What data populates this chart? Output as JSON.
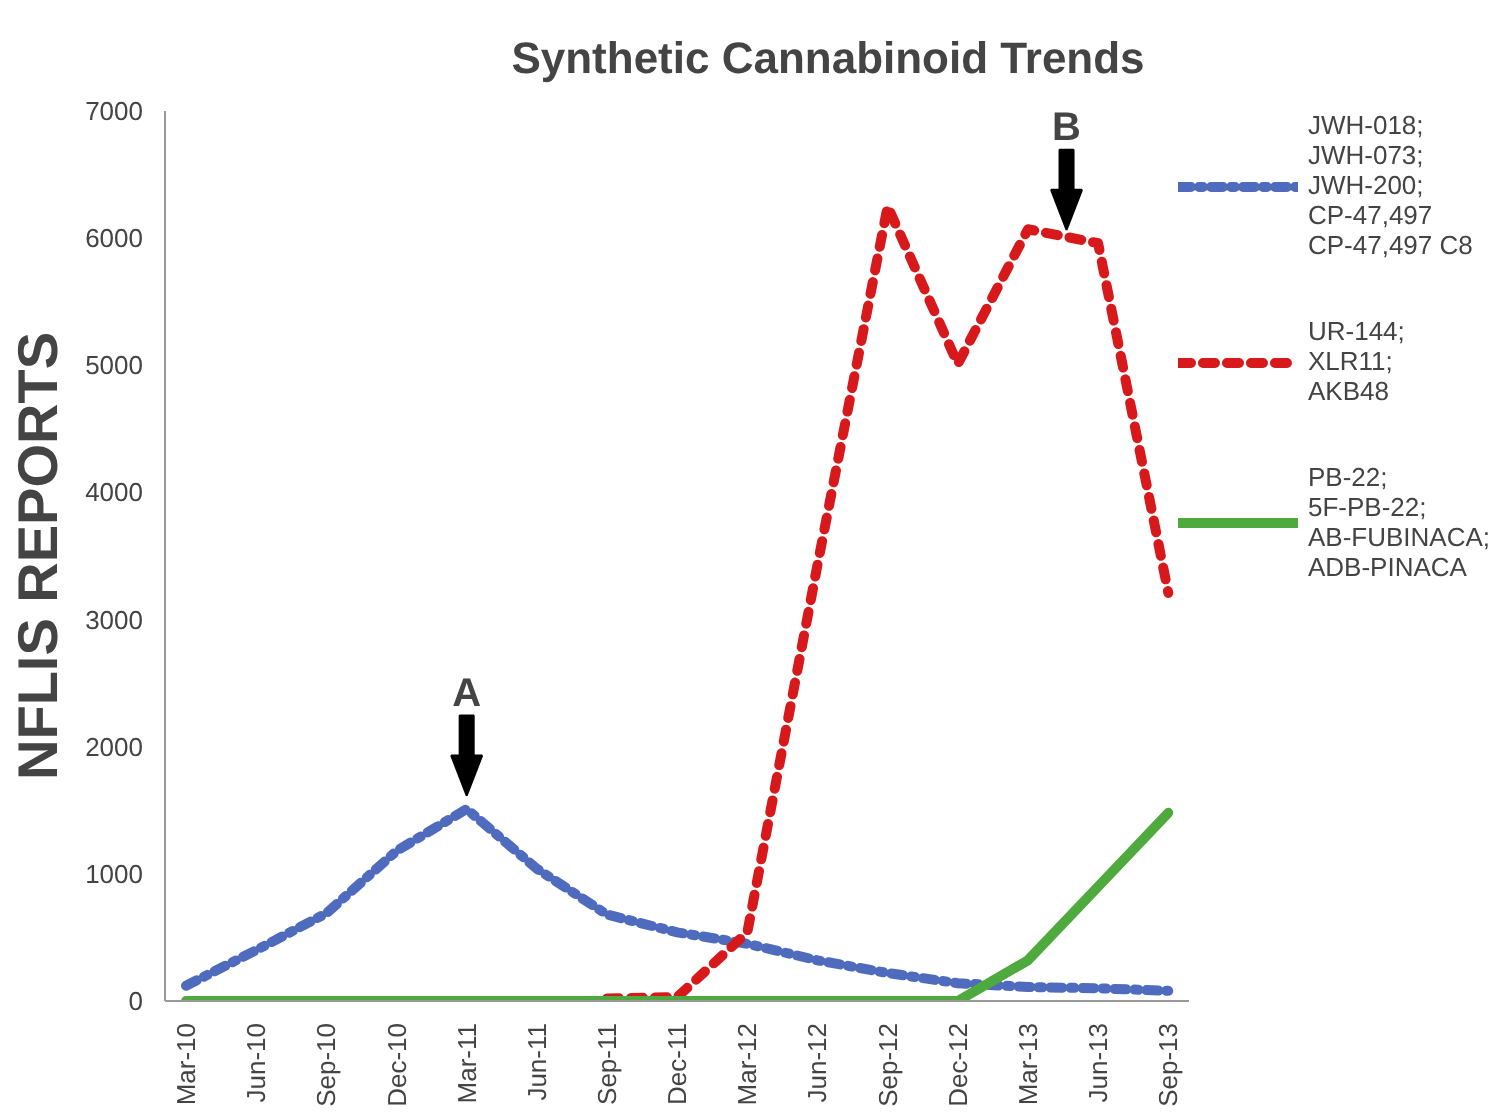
{
  "chart_data": {
    "type": "line",
    "title": "Synthetic Cannabinoid Trends",
    "ylabel": "NFLIS REPORTS",
    "categories": [
      "Mar-10",
      "Jun-10",
      "Sep-10",
      "Dec-10",
      "Mar-11",
      "Jun-11",
      "Sep-11",
      "Dec-11",
      "Mar-12",
      "Jun-12",
      "Sep-12",
      "Dec-12",
      "Mar-13",
      "Jun-13",
      "Sep-13"
    ],
    "series": [
      {
        "name": "JWH-018;\nJWH-073;\nJWH-200;\nCP-47,497\nCP-47,497 C8",
        "color": "#4f6bbd",
        "line_style": "dashdot",
        "values": [
          120,
          400,
          690,
          1180,
          1510,
          1040,
          680,
          540,
          450,
          320,
          220,
          140,
          110,
          100,
          80
        ]
      },
      {
        "name": "UR-144;\nXLR11;\nAKB48",
        "color": "#d7191c",
        "line_style": "dashed",
        "values": [
          null,
          null,
          null,
          null,
          null,
          null,
          20,
          30,
          540,
          3430,
          6250,
          5010,
          6070,
          5960,
          3210
        ]
      },
      {
        "name": "PB-22;\n5F-PB-22;\nAB-FUBINACA;\nADB-PINACA",
        "color": "#4eaa3c",
        "line_style": "solid",
        "values": [
          0,
          0,
          0,
          0,
          0,
          0,
          0,
          0,
          0,
          0,
          0,
          0,
          320,
          900,
          1480
        ]
      }
    ],
    "ylim": [
      0,
      7000
    ],
    "yticks": [
      0,
      1000,
      2000,
      3000,
      4000,
      5000,
      6000,
      7000
    ],
    "grid": false,
    "legend": "right",
    "marker": "none",
    "annotations": [
      {
        "text": "A",
        "x": "Mar-11",
        "y": 1510
      },
      {
        "text": "B",
        "x": "Jun-13",
        "y": 5960
      }
    ]
  }
}
